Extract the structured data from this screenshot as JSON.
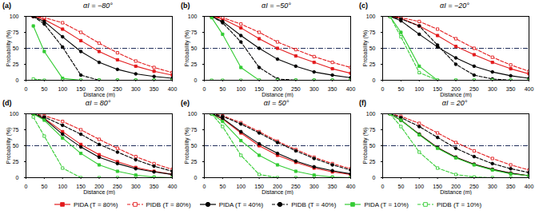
{
  "chart_data": [
    {
      "type": "line",
      "panel_label": "(a)",
      "title": "αI = −80°",
      "x_label": "Distance (m)",
      "y_label": "Probability (%)",
      "xlim": [
        0,
        400
      ],
      "xticks": [
        0,
        50,
        100,
        150,
        200,
        250,
        300,
        350,
        400
      ],
      "ylim": [
        0,
        100
      ],
      "yticks": [
        0,
        25,
        50,
        75,
        100
      ],
      "threshold": 50,
      "x": [
        20,
        50,
        100,
        150,
        200,
        250,
        300,
        350,
        400
      ],
      "series": [
        {
          "name": "PIDA (T = 80%)",
          "color": "#e31a1c",
          "line_style": "solid",
          "marker": "square",
          "values": [
            100,
            95,
            80,
            62,
            45,
            32,
            22,
            14,
            8
          ]
        },
        {
          "name": "PIDB (T = 80%)",
          "color": "#e31a1c",
          "line_style": "dashed",
          "marker": "square-open",
          "values": [
            100,
            98,
            90,
            75,
            58,
            43,
            30,
            20,
            12
          ]
        },
        {
          "name": "PIDA (T = 40%)",
          "color": "#000000",
          "line_style": "solid",
          "marker": "circle",
          "values": [
            100,
            92,
            68,
            45,
            28,
            17,
            10,
            6,
            3
          ]
        },
        {
          "name": "PIDB (T = 40%)",
          "color": "#000000",
          "line_style": "dashed",
          "marker": "circle",
          "values": [
            100,
            88,
            52,
            8,
            0,
            0,
            0,
            0,
            0
          ]
        },
        {
          "name": "PIDA (T = 10%)",
          "color": "#33cc33",
          "line_style": "solid",
          "marker": "square",
          "values": [
            85,
            45,
            3,
            0,
            0,
            0,
            0,
            0,
            0
          ]
        },
        {
          "name": "PIDB (T = 10%)",
          "color": "#33cc33",
          "line_style": "dashed",
          "marker": "square-open",
          "values": [
            2,
            0,
            0,
            0,
            0,
            0,
            0,
            0,
            0
          ]
        }
      ]
    },
    {
      "type": "line",
      "panel_label": "(b)",
      "title": "αI = −50°",
      "x_label": "Distance (m)",
      "y_label": "Probability (%)",
      "xlim": [
        0,
        400
      ],
      "xticks": [
        0,
        50,
        100,
        150,
        200,
        250,
        300,
        350,
        400
      ],
      "ylim": [
        0,
        100
      ],
      "yticks": [
        0,
        25,
        50,
        75,
        100
      ],
      "threshold": 50,
      "x": [
        20,
        50,
        100,
        150,
        200,
        250,
        300,
        350,
        400
      ],
      "series": [
        {
          "name": "PIDA (T = 80%)",
          "color": "#e31a1c",
          "line_style": "solid",
          "marker": "square",
          "values": [
            100,
            96,
            82,
            65,
            50,
            38,
            28,
            18,
            11
          ]
        },
        {
          "name": "PIDB (T = 80%)",
          "color": "#e31a1c",
          "line_style": "dashed",
          "marker": "square-open",
          "values": [
            100,
            98,
            88,
            75,
            60,
            48,
            37,
            28,
            20
          ]
        },
        {
          "name": "PIDA (T = 40%)",
          "color": "#000000",
          "line_style": "solid",
          "marker": "circle",
          "values": [
            100,
            92,
            70,
            50,
            33,
            22,
            13,
            8,
            4
          ]
        },
        {
          "name": "PIDB (T = 40%)",
          "color": "#000000",
          "line_style": "dashed",
          "marker": "circle",
          "values": [
            100,
            90,
            60,
            20,
            2,
            0,
            0,
            0,
            0
          ]
        },
        {
          "name": "PIDA (T = 10%)",
          "color": "#33cc33",
          "line_style": "solid",
          "marker": "square",
          "values": [
            98,
            72,
            20,
            0,
            0,
            0,
            0,
            0,
            0
          ]
        },
        {
          "name": "PIDB (T = 10%)",
          "color": "#33cc33",
          "line_style": "dashed",
          "marker": "square-open",
          "values": [
            0,
            0,
            0,
            0,
            0,
            0,
            0,
            0,
            0
          ]
        }
      ]
    },
    {
      "type": "line",
      "panel_label": "(c)",
      "title": "αI = −20°",
      "x_label": "Distance (m)",
      "y_label": "Probability (%)",
      "legend": "bottom",
      "xlim": [
        0,
        400
      ],
      "xticks": [
        0,
        50,
        100,
        150,
        200,
        250,
        300,
        350,
        400
      ],
      "ylim": [
        0,
        100
      ],
      "yticks": [
        0,
        25,
        50,
        75,
        100
      ],
      "threshold": 50,
      "x": [
        20,
        50,
        100,
        150,
        200,
        250,
        300,
        350,
        400
      ],
      "series": [
        {
          "name": "PIDA (T = 80%)",
          "color": "#e31a1c",
          "line_style": "solid",
          "marker": "square",
          "values": [
            100,
            97,
            85,
            70,
            53,
            40,
            28,
            18,
            10
          ]
        },
        {
          "name": "PIDB (T = 80%)",
          "color": "#e31a1c",
          "line_style": "dashed",
          "marker": "square-open",
          "values": [
            100,
            98,
            92,
            80,
            65,
            50,
            36,
            24,
            14
          ]
        },
        {
          "name": "PIDA (T = 40%)",
          "color": "#000000",
          "line_style": "solid",
          "marker": "circle",
          "values": [
            100,
            93,
            72,
            52,
            35,
            22,
            13,
            7,
            3
          ]
        },
        {
          "name": "PIDB (T = 40%)",
          "color": "#000000",
          "line_style": "dashed",
          "marker": "circle",
          "values": [
            100,
            96,
            85,
            55,
            25,
            8,
            2,
            0,
            0
          ]
        },
        {
          "name": "PIDA (T = 10%)",
          "color": "#33cc33",
          "line_style": "solid",
          "marker": "square",
          "values": [
            100,
            75,
            22,
            0,
            0,
            0,
            0,
            0,
            0
          ]
        },
        {
          "name": "PIDB (T = 10%)",
          "color": "#33cc33",
          "line_style": "dashed",
          "marker": "square-open",
          "values": [
            100,
            68,
            12,
            0,
            0,
            0,
            0,
            0,
            0
          ]
        }
      ]
    },
    {
      "type": "line",
      "panel_label": "(d)",
      "title": "αI = 80°",
      "x_label": "Distance (m)",
      "y_label": "Probability (%)",
      "xlim": [
        0,
        400
      ],
      "xticks": [
        0,
        50,
        100,
        150,
        200,
        250,
        300,
        350,
        400
      ],
      "ylim": [
        0,
        100
      ],
      "yticks": [
        0,
        25,
        50,
        75,
        100
      ],
      "threshold": 50,
      "x": [
        20,
        50,
        100,
        150,
        200,
        250,
        300,
        350,
        400
      ],
      "series": [
        {
          "name": "PIDA (T = 80%)",
          "color": "#e31a1c",
          "line_style": "solid",
          "marker": "square",
          "values": [
            100,
            93,
            72,
            52,
            36,
            25,
            16,
            10,
            5
          ]
        },
        {
          "name": "PIDB (T = 80%)",
          "color": "#e31a1c",
          "line_style": "dashed",
          "marker": "square-open",
          "values": [
            100,
            97,
            88,
            75,
            60,
            46,
            33,
            22,
            13
          ]
        },
        {
          "name": "PIDA (T = 40%)",
          "color": "#000000",
          "line_style": "solid",
          "marker": "circle",
          "values": [
            100,
            92,
            68,
            48,
            32,
            22,
            14,
            9,
            5
          ]
        },
        {
          "name": "PIDB (T = 40%)",
          "color": "#000000",
          "line_style": "dashed",
          "marker": "circle",
          "values": [
            100,
            95,
            82,
            68,
            52,
            40,
            28,
            18,
            10
          ]
        },
        {
          "name": "PIDA (T = 10%)",
          "color": "#33cc33",
          "line_style": "solid",
          "marker": "square",
          "values": [
            100,
            90,
            62,
            38,
            20,
            10,
            4,
            1,
            0
          ]
        },
        {
          "name": "PIDB (T = 10%)",
          "color": "#33cc33",
          "line_style": "dashed",
          "marker": "square-open",
          "values": [
            95,
            65,
            15,
            0,
            0,
            0,
            0,
            0,
            0
          ]
        }
      ]
    },
    {
      "type": "line",
      "panel_label": "(e)",
      "title": "αI = 50°",
      "x_label": "Distance (m)",
      "y_label": "Probability (%)",
      "xlim": [
        0,
        400
      ],
      "xticks": [
        0,
        50,
        100,
        150,
        200,
        250,
        300,
        350,
        400
      ],
      "ylim": [
        0,
        100
      ],
      "yticks": [
        0,
        25,
        50,
        75,
        100
      ],
      "threshold": 50,
      "x": [
        20,
        50,
        100,
        150,
        200,
        250,
        300,
        350,
        400
      ],
      "series": [
        {
          "name": "PIDA (T = 80%)",
          "color": "#e31a1c",
          "line_style": "solid",
          "marker": "square",
          "values": [
            100,
            92,
            70,
            50,
            35,
            24,
            15,
            9,
            5
          ]
        },
        {
          "name": "PIDB (T = 80%)",
          "color": "#e31a1c",
          "line_style": "dashed",
          "marker": "square-open",
          "values": [
            100,
            97,
            86,
            72,
            57,
            44,
            32,
            22,
            14
          ]
        },
        {
          "name": "PIDA (T = 40%)",
          "color": "#000000",
          "line_style": "solid",
          "marker": "circle",
          "values": [
            100,
            93,
            72,
            53,
            38,
            26,
            17,
            11,
            6
          ]
        },
        {
          "name": "PIDB (T = 40%)",
          "color": "#000000",
          "line_style": "dashed",
          "marker": "circle",
          "values": [
            100,
            96,
            84,
            70,
            55,
            42,
            30,
            20,
            12
          ]
        },
        {
          "name": "PIDA (T = 10%)",
          "color": "#33cc33",
          "line_style": "solid",
          "marker": "square",
          "values": [
            100,
            88,
            58,
            35,
            20,
            10,
            4,
            1,
            0
          ]
        },
        {
          "name": "PIDB (T = 10%)",
          "color": "#33cc33",
          "line_style": "dashed",
          "marker": "square-open",
          "values": [
            100,
            80,
            35,
            5,
            0,
            0,
            0,
            0,
            0
          ]
        }
      ]
    },
    {
      "type": "line",
      "panel_label": "(f)",
      "title": "αI = 20°",
      "x_label": "Distance (m)",
      "y_label": "Probability (%)",
      "xlim": [
        0,
        400
      ],
      "xticks": [
        0,
        50,
        100,
        150,
        200,
        250,
        300,
        350,
        400
      ],
      "ylim": [
        0,
        100
      ],
      "yticks": [
        0,
        25,
        50,
        75,
        100
      ],
      "threshold": 50,
      "x": [
        20,
        50,
        100,
        150,
        200,
        250,
        300,
        350,
        400
      ],
      "series": [
        {
          "name": "PIDA (T = 80%)",
          "color": "#e31a1c",
          "line_style": "solid",
          "marker": "square",
          "values": [
            100,
            90,
            68,
            47,
            32,
            21,
            13,
            7,
            3
          ]
        },
        {
          "name": "PIDB (T = 80%)",
          "color": "#e31a1c",
          "line_style": "dashed",
          "marker": "square-open",
          "values": [
            100,
            96,
            85,
            70,
            55,
            42,
            30,
            20,
            12
          ]
        },
        {
          "name": "PIDA (T = 40%)",
          "color": "#000000",
          "line_style": "solid",
          "marker": "circle",
          "values": [
            100,
            90,
            68,
            47,
            32,
            21,
            13,
            7,
            3
          ]
        },
        {
          "name": "PIDB (T = 40%)",
          "color": "#000000",
          "line_style": "dashed",
          "marker": "circle",
          "values": [
            100,
            94,
            80,
            63,
            46,
            33,
            22,
            14,
            8
          ]
        },
        {
          "name": "PIDA (T = 10%)",
          "color": "#33cc33",
          "line_style": "solid",
          "marker": "square",
          "values": [
            100,
            90,
            67,
            46,
            31,
            20,
            12,
            6,
            3
          ]
        },
        {
          "name": "PIDB (T = 10%)",
          "color": "#33cc33",
          "line_style": "dashed",
          "marker": "square-open",
          "values": [
            100,
            80,
            40,
            15,
            5,
            1,
            0,
            0,
            0
          ]
        }
      ]
    }
  ]
}
